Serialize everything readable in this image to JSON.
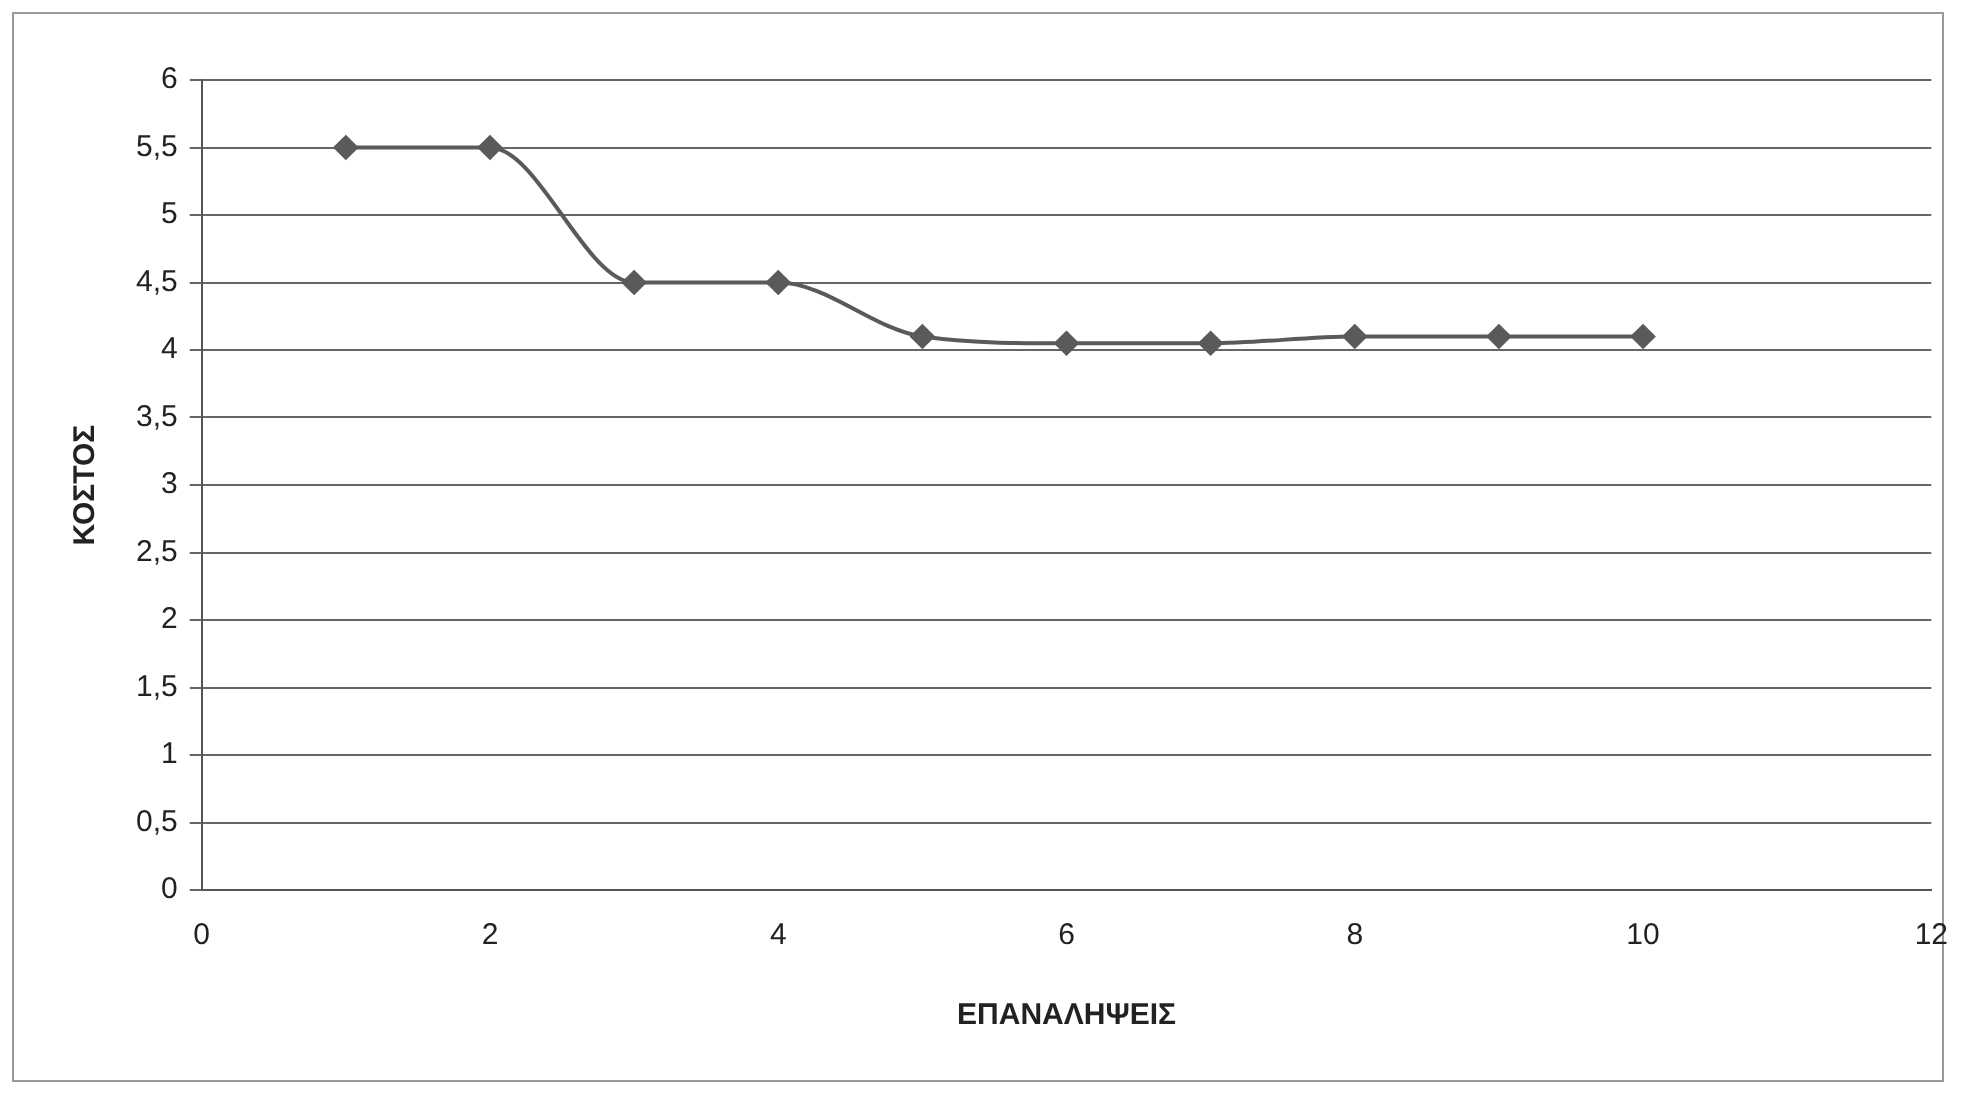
{
  "chart_data": {
    "type": "line",
    "xlabel": "ΕΠΑΝΑΛΗΨΕΙΣ",
    "ylabel": "ΚΟΣΤΟΣ",
    "x": [
      1,
      2,
      3,
      4,
      5,
      6,
      7,
      8,
      9,
      10
    ],
    "series": [
      {
        "color": "#5a5a5a",
        "values": [
          5.5,
          5.5,
          4.5,
          4.5,
          4.1,
          4.05,
          4.05,
          4.1,
          4.1,
          4.1
        ]
      }
    ],
    "xlim": [
      0,
      12
    ],
    "xticks": [
      0,
      2,
      4,
      6,
      8,
      10,
      12
    ],
    "ylim": [
      0,
      6
    ],
    "yticks": [
      0,
      {
        "value": 0.5,
        "label": "0,5"
      },
      1,
      {
        "value": 1.5,
        "label": "1,5"
      },
      2,
      {
        "value": 2.5,
        "label": "2,5"
      },
      3,
      {
        "value": 3.5,
        "label": "3,5"
      },
      4,
      {
        "value": 4.5,
        "label": "4,5"
      },
      5,
      {
        "value": 5.5,
        "label": "5,5"
      },
      6
    ],
    "grid": "y",
    "legend": false,
    "marker": "diamond",
    "line_style": "solid"
  }
}
